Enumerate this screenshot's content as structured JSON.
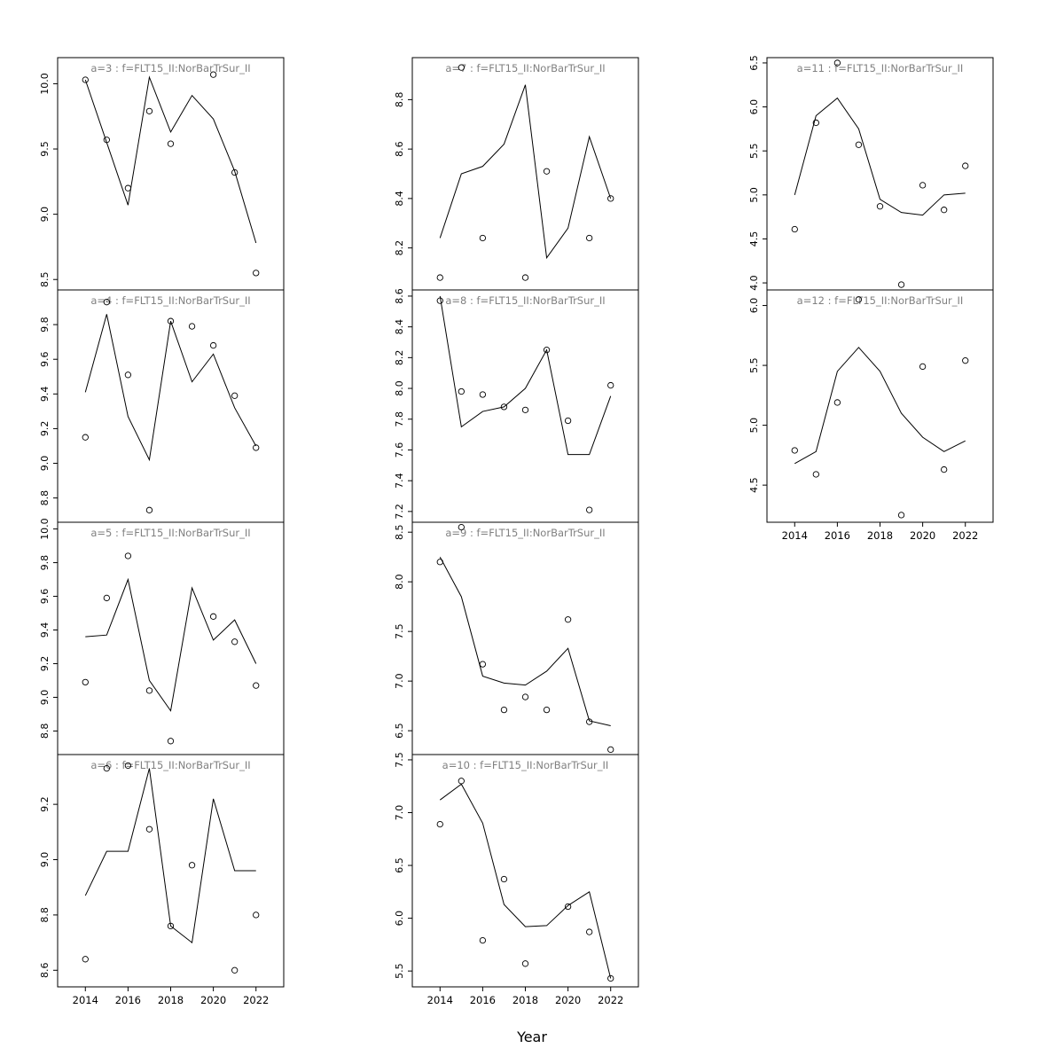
{
  "figure": {
    "background": "#ffffff",
    "xlabel": "Year"
  },
  "chart_data": {
    "type": "line",
    "description": "Trellis of 10 panels, fitted line with open-circle observed points per age class a",
    "x": [
      2014,
      2015,
      2016,
      2017,
      2018,
      2019,
      2020,
      2021,
      2022
    ],
    "xticks": [
      2014,
      2016,
      2018,
      2020,
      2022
    ],
    "xlim": [
      2012.7,
      2023.3
    ],
    "xlabel": "Year",
    "grid": "off",
    "legend": "none",
    "line_color": "#000000",
    "point_color": "#000000",
    "title_color": "#808080",
    "axis_color": "#000000",
    "panels": [
      {
        "id": "a3",
        "col": 0,
        "row": 0,
        "xaxis": false,
        "title": "a=3 : f=FLT15_II:NorBarTrSur_II",
        "ylim": [
          8.42,
          10.2
        ],
        "yticks": [
          8.5,
          9.0,
          9.5,
          10.0
        ],
        "line": [
          10.03,
          9.55,
          9.07,
          10.05,
          9.63,
          9.91,
          9.73,
          9.33,
          8.78
        ],
        "points": [
          10.03,
          9.57,
          9.2,
          9.79,
          9.54,
          null,
          10.07,
          9.32,
          8.55
        ]
      },
      {
        "id": "a4",
        "col": 0,
        "row": 1,
        "xaxis": false,
        "title": "a=4 : f=FLT15_II:NorBarTrSur_II",
        "ylim": [
          8.66,
          10.0
        ],
        "yticks": [
          8.8,
          9.0,
          9.2,
          9.4,
          9.6,
          9.8
        ],
        "line": [
          9.41,
          9.86,
          9.27,
          9.02,
          9.82,
          9.47,
          9.63,
          9.32,
          9.1
        ],
        "points": [
          9.15,
          9.93,
          9.51,
          8.73,
          9.82,
          9.79,
          9.68,
          9.39,
          9.09
        ]
      },
      {
        "id": "a5",
        "col": 0,
        "row": 2,
        "xaxis": false,
        "title": "a=5 : f=FLT15_II:NorBarTrSur_II",
        "ylim": [
          8.66,
          10.04
        ],
        "yticks": [
          8.8,
          9.0,
          9.2,
          9.4,
          9.6,
          9.8,
          10.0
        ],
        "line": [
          9.36,
          9.37,
          9.7,
          9.1,
          8.92,
          9.65,
          9.34,
          9.46,
          9.2
        ],
        "points": [
          9.09,
          9.59,
          9.84,
          9.04,
          8.74,
          null,
          9.48,
          9.33,
          9.07
        ]
      },
      {
        "id": "a6",
        "col": 0,
        "row": 3,
        "xaxis": true,
        "title": "a=6 : f=FLT15_II:NorBarTrSur_II",
        "ylim": [
          8.54,
          9.38
        ],
        "yticks": [
          8.6,
          8.8,
          9.0,
          9.2
        ],
        "line": [
          8.87,
          9.03,
          9.03,
          9.33,
          8.76,
          8.7,
          9.22,
          8.96,
          8.96
        ],
        "points": [
          8.64,
          9.33,
          9.34,
          9.11,
          8.76,
          8.98,
          null,
          8.6,
          8.8
        ]
      },
      {
        "id": "a7",
        "col": 1,
        "row": 0,
        "xaxis": false,
        "title": "a=7 : f=FLT15_II:NorBarTrSur_II",
        "ylim": [
          8.03,
          8.97
        ],
        "yticks": [
          8.2,
          8.4,
          8.6,
          8.8
        ],
        "line": [
          8.24,
          8.5,
          8.53,
          8.62,
          8.86,
          8.16,
          8.28,
          8.65,
          8.4
        ],
        "points": [
          8.08,
          8.93,
          8.24,
          null,
          8.08,
          8.51,
          null,
          8.24,
          8.4
        ]
      },
      {
        "id": "a8",
        "col": 1,
        "row": 1,
        "xaxis": false,
        "title": "a=8 : f=FLT15_II:NorBarTrSur_II",
        "ylim": [
          7.13,
          8.64
        ],
        "yticks": [
          7.2,
          7.4,
          7.6,
          7.8,
          8.0,
          8.2,
          8.4,
          8.6
        ],
        "line": [
          8.6,
          7.75,
          7.85,
          7.88,
          8.0,
          8.25,
          7.57,
          7.57,
          7.95
        ],
        "points": [
          8.57,
          7.98,
          7.96,
          7.88,
          7.86,
          8.25,
          7.79,
          7.21,
          8.02
        ]
      },
      {
        "id": "a9",
        "col": 1,
        "row": 2,
        "xaxis": false,
        "title": "a=9 : f=FLT15_II:NorBarTrSur_II",
        "ylim": [
          6.26,
          8.6
        ],
        "yticks": [
          6.5,
          7.0,
          7.5,
          8.0,
          8.5
        ],
        "line": [
          8.25,
          7.85,
          7.05,
          6.98,
          6.96,
          7.1,
          7.33,
          6.6,
          6.55
        ],
        "points": [
          8.2,
          8.55,
          7.17,
          6.71,
          6.84,
          6.71,
          7.62,
          6.59,
          6.31
        ]
      },
      {
        "id": "a10",
        "col": 1,
        "row": 3,
        "xaxis": true,
        "title": "a=10 : f=FLT15_II:NorBarTrSur_II",
        "ylim": [
          5.35,
          7.55
        ],
        "yticks": [
          5.5,
          6.0,
          6.5,
          7.0,
          7.5
        ],
        "line": [
          7.12,
          7.27,
          6.9,
          6.13,
          5.92,
          5.93,
          6.12,
          6.25,
          5.43
        ],
        "points": [
          6.89,
          7.3,
          5.79,
          6.37,
          5.57,
          null,
          6.11,
          5.87,
          5.43
        ]
      },
      {
        "id": "a11",
        "col": 2,
        "row": 0,
        "xaxis": false,
        "title": "a=11 : f=FLT15_II:NorBarTrSur_II",
        "ylim": [
          3.92,
          6.56
        ],
        "yticks": [
          4.0,
          4.5,
          5.0,
          5.5,
          6.0,
          6.5
        ],
        "line": [
          5.0,
          5.9,
          6.1,
          5.75,
          4.95,
          4.8,
          4.77,
          5.0,
          5.02
        ],
        "points": [
          4.61,
          5.82,
          6.5,
          5.57,
          4.87,
          3.98,
          5.11,
          4.83,
          5.33
        ]
      },
      {
        "id": "a12",
        "col": 2,
        "row": 1,
        "xaxis": true,
        "title": "a=12 : f=FLT15_II:NorBarTrSur_II",
        "ylim": [
          4.19,
          6.13
        ],
        "yticks": [
          4.5,
          5.0,
          5.5,
          6.0
        ],
        "line": [
          4.68,
          4.78,
          5.45,
          5.65,
          5.45,
          5.1,
          4.9,
          4.78,
          4.87
        ],
        "points": [
          4.79,
          4.59,
          5.19,
          6.05,
          null,
          4.25,
          5.49,
          4.63,
          5.54
        ]
      }
    ]
  }
}
